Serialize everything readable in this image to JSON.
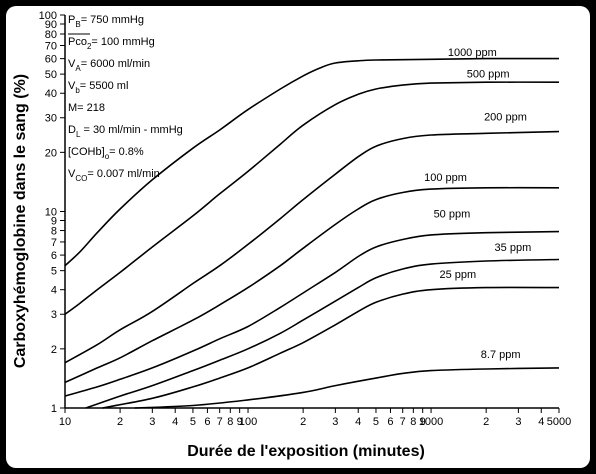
{
  "chart_data": {
    "type": "line",
    "xscale": "log",
    "yscale": "log",
    "xlabel": "Durée de l'exposition (minutes)",
    "ylabel": "Carboxyhémoglobine dans le sang (%)",
    "xlim": [
      10,
      5000
    ],
    "ylim": [
      1,
      100
    ],
    "x_ticks": [
      {
        "v": 10,
        "label": "10"
      },
      {
        "v": 20,
        "label": "2"
      },
      {
        "v": 30,
        "label": "3"
      },
      {
        "v": 40,
        "label": "4"
      },
      {
        "v": 50,
        "label": "5"
      },
      {
        "v": 60,
        "label": "6"
      },
      {
        "v": 70,
        "label": "7"
      },
      {
        "v": 80,
        "label": "8"
      },
      {
        "v": 90,
        "label": "9"
      },
      {
        "v": 100,
        "label": "100"
      },
      {
        "v": 200,
        "label": "2"
      },
      {
        "v": 300,
        "label": "3"
      },
      {
        "v": 400,
        "label": "4"
      },
      {
        "v": 500,
        "label": "5"
      },
      {
        "v": 600,
        "label": "6"
      },
      {
        "v": 700,
        "label": "7"
      },
      {
        "v": 800,
        "label": "8"
      },
      {
        "v": 900,
        "label": "9"
      },
      {
        "v": 1000,
        "label": "1000"
      },
      {
        "v": 2000,
        "label": "2"
      },
      {
        "v": 3000,
        "label": "3"
      },
      {
        "v": 4000,
        "label": "4"
      },
      {
        "v": 5000,
        "label": "5000"
      }
    ],
    "y_ticks": [
      {
        "v": 1,
        "label": "1"
      },
      {
        "v": 2,
        "label": "2"
      },
      {
        "v": 3,
        "label": "3"
      },
      {
        "v": 4,
        "label": "4"
      },
      {
        "v": 5,
        "label": "5"
      },
      {
        "v": 6,
        "label": "6"
      },
      {
        "v": 7,
        "label": "7"
      },
      {
        "v": 8,
        "label": "8"
      },
      {
        "v": 9,
        "label": "9"
      },
      {
        "v": 10,
        "label": "10"
      },
      {
        "v": 20,
        "label": "20"
      },
      {
        "v": 30,
        "label": "30"
      },
      {
        "v": 40,
        "label": "40"
      },
      {
        "v": 50,
        "label": "50"
      },
      {
        "v": 60,
        "label": "60"
      },
      {
        "v": 70,
        "label": "70"
      },
      {
        "v": 80,
        "label": "80"
      },
      {
        "v": 90,
        "label": "90"
      },
      {
        "v": 100,
        "label": "100"
      }
    ],
    "parameters": [
      {
        "main": "P",
        "sub": "B",
        "rest": "= 750 mmHg"
      },
      {
        "main": "Pco",
        "sub": "2",
        "rest": "= 100 mmHg",
        "overline": true
      },
      {
        "main": "V",
        "sub": "A",
        "rest": "= 6000 ml/min"
      },
      {
        "main": "V",
        "sub": "b",
        "rest": "= 5500 ml"
      },
      {
        "main": "M= 218",
        "sub": "",
        "rest": ""
      },
      {
        "main": "D",
        "sub": "L",
        "rest": " = 30 ml/min - mmHg"
      },
      {
        "main": "[COHb]",
        "sub": "o",
        "rest": "= 0.8%"
      },
      {
        "main": "V",
        "sub": "CO",
        "rest": "= 0.007 ml/min"
      }
    ],
    "series": [
      {
        "name": "1000 ppm",
        "label_pos": [
          1680,
          62
        ],
        "points": [
          [
            10,
            5.3
          ],
          [
            12,
            6.2
          ],
          [
            15,
            7.8
          ],
          [
            20,
            10.3
          ],
          [
            30,
            14.5
          ],
          [
            50,
            21
          ],
          [
            70,
            26
          ],
          [
            100,
            33
          ],
          [
            150,
            42
          ],
          [
            200,
            49
          ],
          [
            250,
            54
          ],
          [
            300,
            57
          ],
          [
            400,
            58.5
          ],
          [
            500,
            59
          ],
          [
            1000,
            59.5
          ],
          [
            2000,
            60
          ],
          [
            5000,
            60
          ]
        ]
      },
      {
        "name": "500 ppm",
        "label_pos": [
          2050,
          48
        ],
        "points": [
          [
            10,
            3.0
          ],
          [
            12,
            3.4
          ],
          [
            15,
            4.0
          ],
          [
            20,
            4.9
          ],
          [
            30,
            6.6
          ],
          [
            50,
            9.5
          ],
          [
            70,
            12.3
          ],
          [
            100,
            16
          ],
          [
            150,
            22
          ],
          [
            200,
            27.5
          ],
          [
            300,
            35
          ],
          [
            400,
            39.5
          ],
          [
            500,
            42
          ],
          [
            700,
            44
          ],
          [
            1000,
            45
          ],
          [
            2000,
            45.5
          ],
          [
            5000,
            45.5
          ]
        ]
      },
      {
        "name": "200 ppm",
        "label_pos": [
          2550,
          29
        ],
        "points": [
          [
            10,
            1.7
          ],
          [
            15,
            2.1
          ],
          [
            20,
            2.5
          ],
          [
            30,
            3.1
          ],
          [
            50,
            4.3
          ],
          [
            70,
            5.3
          ],
          [
            100,
            6.8
          ],
          [
            150,
            9.2
          ],
          [
            200,
            11.5
          ],
          [
            300,
            15.5
          ],
          [
            400,
            19
          ],
          [
            500,
            21.5
          ],
          [
            700,
            23.5
          ],
          [
            1000,
            24.5
          ],
          [
            2000,
            25
          ],
          [
            5000,
            25.5
          ]
        ]
      },
      {
        "name": "100 ppm",
        "label_pos": [
          1200,
          14.3
        ],
        "points": [
          [
            10,
            1.35
          ],
          [
            15,
            1.6
          ],
          [
            20,
            1.8
          ],
          [
            30,
            2.2
          ],
          [
            50,
            2.8
          ],
          [
            70,
            3.35
          ],
          [
            100,
            4.1
          ],
          [
            150,
            5.3
          ],
          [
            200,
            6.5
          ],
          [
            300,
            8.6
          ],
          [
            400,
            10.3
          ],
          [
            500,
            11.5
          ],
          [
            700,
            12.5
          ],
          [
            1000,
            13
          ],
          [
            2000,
            13.2
          ],
          [
            5000,
            13.2
          ]
        ]
      },
      {
        "name": "50 ppm",
        "label_pos": [
          1300,
          9.3
        ],
        "points": [
          [
            10,
            1.15
          ],
          [
            15,
            1.28
          ],
          [
            20,
            1.4
          ],
          [
            30,
            1.6
          ],
          [
            50,
            1.95
          ],
          [
            70,
            2.25
          ],
          [
            100,
            2.6
          ],
          [
            150,
            3.25
          ],
          [
            200,
            3.85
          ],
          [
            300,
            4.9
          ],
          [
            400,
            5.9
          ],
          [
            500,
            6.6
          ],
          [
            700,
            7.2
          ],
          [
            1000,
            7.6
          ],
          [
            2000,
            7.8
          ],
          [
            5000,
            7.9
          ]
        ]
      },
      {
        "name": "35 ppm",
        "label_pos": [
          2800,
          6.3
        ],
        "points": [
          [
            13,
            1.0
          ],
          [
            20,
            1.15
          ],
          [
            30,
            1.3
          ],
          [
            50,
            1.55
          ],
          [
            70,
            1.75
          ],
          [
            100,
            2.0
          ],
          [
            150,
            2.4
          ],
          [
            200,
            2.8
          ],
          [
            300,
            3.5
          ],
          [
            400,
            4.1
          ],
          [
            500,
            4.6
          ],
          [
            700,
            5.1
          ],
          [
            1000,
            5.4
          ],
          [
            2000,
            5.6
          ],
          [
            5000,
            5.7
          ]
        ]
      },
      {
        "name": "25 ppm",
        "label_pos": [
          1400,
          4.6
        ],
        "points": [
          [
            16,
            1.0
          ],
          [
            30,
            1.12
          ],
          [
            50,
            1.28
          ],
          [
            70,
            1.42
          ],
          [
            100,
            1.6
          ],
          [
            150,
            1.9
          ],
          [
            200,
            2.15
          ],
          [
            300,
            2.65
          ],
          [
            400,
            3.1
          ],
          [
            500,
            3.45
          ],
          [
            700,
            3.8
          ],
          [
            1000,
            4.0
          ],
          [
            2000,
            4.1
          ],
          [
            5000,
            4.1
          ]
        ]
      },
      {
        "name": "8.7 ppm",
        "label_pos": [
          2400,
          1.8
        ],
        "points": [
          [
            24,
            1.0
          ],
          [
            50,
            1.03
          ],
          [
            100,
            1.1
          ],
          [
            200,
            1.2
          ],
          [
            300,
            1.3
          ],
          [
            500,
            1.42
          ],
          [
            700,
            1.5
          ],
          [
            1000,
            1.55
          ],
          [
            2000,
            1.58
          ],
          [
            5000,
            1.6
          ]
        ]
      }
    ]
  }
}
